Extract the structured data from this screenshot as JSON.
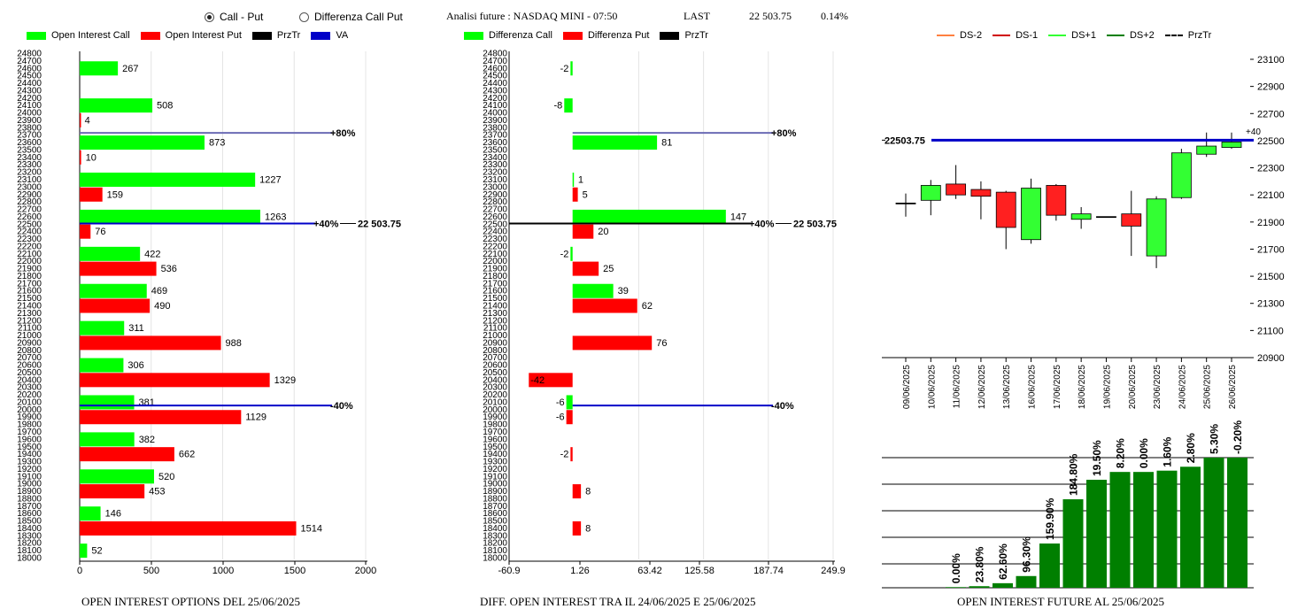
{
  "header": {
    "radio_call_put": "Call - Put",
    "radio_diff": "Differenza Call Put",
    "title": "Analisi future : NASDAQ MINI - 07:50",
    "last_label": "LAST",
    "last_value": "22 503.75",
    "last_change": "0.14%"
  },
  "footers": {
    "left": "OPEN INTEREST OPTIONS DEL 25/06/2025",
    "middle": "DIFF. OPEN INTEREST TRA IL 24/06/2025 E 25/06/2025",
    "right": "OPEN INTEREST FUTURE AL 25/06/2025"
  },
  "colors": {
    "call": "#00ff00",
    "put": "#ff0000",
    "prztr": "#000000",
    "va": "#0000c8",
    "up_candle": "#33ff33",
    "down_candle": "#ff2020",
    "oi_bar": "#007f00"
  },
  "chart_data": [
    {
      "type": "bar",
      "orientation": "horizontal",
      "name": "open-interest-options",
      "legend": [
        "Open Interest Call",
        "Open Interest Put",
        "PrzTr",
        "VA"
      ],
      "strike_labels": [
        24800,
        24700,
        24600,
        24500,
        24400,
        24300,
        24200,
        24100,
        24000,
        23900,
        23800,
        23700,
        23600,
        23500,
        23400,
        23300,
        23200,
        23100,
        23000,
        22900,
        22800,
        22700,
        22600,
        22500,
        22400,
        22300,
        22200,
        22100,
        22000,
        21900,
        21800,
        21700,
        21600,
        21500,
        21400,
        21300,
        21200,
        21100,
        21000,
        20900,
        20800,
        20700,
        20600,
        20500,
        20400,
        20300,
        20200,
        20100,
        20000,
        19900,
        19800,
        19700,
        19600,
        19500,
        19400,
        19300,
        19200,
        19100,
        19000,
        18900,
        18800,
        18700,
        18600,
        18500,
        18400,
        18300,
        18200,
        18100,
        18000
      ],
      "xlim": [
        0,
        2000
      ],
      "xticks": [
        0,
        500,
        1000,
        1500,
        2000
      ],
      "call": [
        [
          24600,
          267
        ],
        [
          24100,
          508
        ],
        [
          23600,
          873
        ],
        [
          23100,
          1227
        ],
        [
          22600,
          1263
        ],
        [
          22100,
          422
        ],
        [
          21600,
          469
        ],
        [
          21100,
          311
        ],
        [
          20600,
          306
        ],
        [
          20100,
          381
        ],
        [
          19600,
          382
        ],
        [
          19100,
          520
        ],
        [
          18600,
          146
        ],
        [
          18100,
          52
        ]
      ],
      "put": [
        [
          23900,
          4
        ],
        [
          23400,
          10
        ],
        [
          22900,
          159
        ],
        [
          22400,
          76
        ],
        [
          21900,
          536
        ],
        [
          21400,
          490
        ],
        [
          20900,
          988
        ],
        [
          20400,
          1329
        ],
        [
          19900,
          1129
        ],
        [
          19400,
          662
        ],
        [
          18900,
          453
        ],
        [
          18400,
          1514
        ]
      ],
      "lines": [
        {
          "price": 23725,
          "label": "+80%",
          "color": "#6b6bb5"
        },
        {
          "price": 22503.75,
          "label": "+40%",
          "value_label": "22 503.75",
          "color": "#0000c8"
        },
        {
          "price": 20050,
          "label": "-40%",
          "color": "#0000c8"
        }
      ]
    },
    {
      "type": "bar",
      "orientation": "horizontal",
      "name": "diff-open-interest",
      "legend": [
        "Differenza Call",
        "Differenza Put",
        "PrzTr"
      ],
      "strike_labels": [
        24800,
        24700,
        24600,
        24500,
        24400,
        24300,
        24200,
        24100,
        24000,
        23900,
        23800,
        23700,
        23600,
        23500,
        23400,
        23300,
        23200,
        23100,
        23000,
        22900,
        22800,
        22700,
        22600,
        22500,
        22400,
        22300,
        22200,
        22100,
        22000,
        21900,
        21800,
        21700,
        21600,
        21500,
        21400,
        21300,
        21200,
        21100,
        21000,
        20900,
        20800,
        20700,
        20600,
        20500,
        20400,
        20300,
        20200,
        20100,
        20000,
        19900,
        19800,
        19700,
        19600,
        19500,
        19400,
        19300,
        19200,
        19100,
        19000,
        18900,
        18800,
        18700,
        18600,
        18500,
        18400,
        18300,
        18200,
        18100,
        18000
      ],
      "xlim": [
        -60.9,
        249.9
      ],
      "xticks": [
        "-60.9",
        "1.26",
        "63.42",
        "125.58",
        "187.74",
        "249.9"
      ],
      "call": [
        [
          24600,
          -2
        ],
        [
          24100,
          -8
        ],
        [
          23600,
          81
        ],
        [
          23100,
          1
        ],
        [
          22600,
          147
        ],
        [
          22100,
          -2
        ],
        [
          21600,
          39
        ],
        [
          20100,
          -6
        ]
      ],
      "put": [
        [
          22900,
          5
        ],
        [
          22400,
          20
        ],
        [
          21900,
          25
        ],
        [
          21400,
          62
        ],
        [
          20900,
          76
        ],
        [
          20400,
          -42
        ],
        [
          19900,
          -6
        ],
        [
          19400,
          -2
        ],
        [
          18900,
          8
        ],
        [
          18400,
          8
        ]
      ],
      "lines": [
        {
          "price": 23725,
          "label": "+80%",
          "color": "#6b6bb5"
        },
        {
          "price": 22503.75,
          "label": "+40%",
          "value_label": "22 503.75",
          "color": "#000000"
        },
        {
          "price": 20050,
          "label": "-40%",
          "color": "#0000c8"
        }
      ]
    },
    {
      "type": "candlestick",
      "name": "daily-candles",
      "legend": [
        "DS-2",
        "DS-1",
        "DS+1",
        "DS+2",
        "PrzTr"
      ],
      "legend_colors": [
        "#ff8040",
        "#d00000",
        "#33ff33",
        "#007f00",
        "#000000"
      ],
      "yticks": [
        23100,
        22900,
        22700,
        22500,
        22300,
        22100,
        21900,
        21700,
        21500,
        21300,
        21100,
        20900
      ],
      "ylim": [
        20900,
        23100
      ],
      "price_line": {
        "value": 22503.75,
        "label": "22503.75",
        "color": "#0000c8"
      },
      "annotation": "+40",
      "candles": [
        {
          "date": "09/06/2025",
          "open": 22040,
          "close": 22040,
          "high": 22110,
          "low": 21940
        },
        {
          "date": "10/06/2025",
          "open": 22060,
          "close": 22170,
          "high": 22210,
          "low": 21950
        },
        {
          "date": "11/06/2025",
          "open": 22180,
          "close": 22100,
          "high": 22320,
          "low": 22070
        },
        {
          "date": "12/06/2025",
          "open": 22140,
          "close": 22090,
          "high": 22200,
          "low": 21920
        },
        {
          "date": "13/06/2025",
          "open": 22120,
          "close": 21860,
          "high": 22130,
          "low": 21700
        },
        {
          "date": "16/06/2025",
          "open": 21770,
          "close": 22150,
          "high": 22220,
          "low": 21740
        },
        {
          "date": "17/06/2025",
          "open": 22170,
          "close": 21950,
          "high": 22180,
          "low": 21910
        },
        {
          "date": "18/06/2025",
          "open": 21920,
          "close": 21960,
          "high": 22010,
          "low": 21850
        },
        {
          "date": "19/06/2025",
          "open": 21940,
          "close": 21940,
          "high": 21940,
          "low": 21940
        },
        {
          "date": "20/06/2025",
          "open": 21960,
          "close": 21870,
          "high": 22130,
          "low": 21650
        },
        {
          "date": "23/06/2025",
          "open": 21650,
          "close": 22070,
          "high": 22090,
          "low": 21560
        },
        {
          "date": "24/06/2025",
          "open": 22080,
          "close": 22410,
          "high": 22440,
          "low": 22070
        },
        {
          "date": "25/06/2025",
          "open": 22400,
          "close": 22460,
          "high": 22560,
          "low": 22380
        },
        {
          "date": "26/06/2025",
          "open": 22450,
          "close": 22490,
          "high": 22560,
          "low": 22440
        }
      ]
    },
    {
      "type": "bar",
      "name": "open-interest-future",
      "values": [
        0.5,
        1.2,
        3.5,
        9.0,
        34.0,
        68.0,
        83.0,
        89.0,
        89.0,
        90.0,
        93.0,
        100,
        100
      ],
      "value_labels": [
        "0.00%",
        "23.80%",
        "62.60%",
        "96.30%",
        "159.90%",
        "184.80%",
        "19.50%",
        "8.20%",
        "0.00%",
        "1.60%",
        "2.80%",
        "5.30%",
        "-0.20%"
      ],
      "ylim": [
        0,
        100
      ]
    }
  ]
}
